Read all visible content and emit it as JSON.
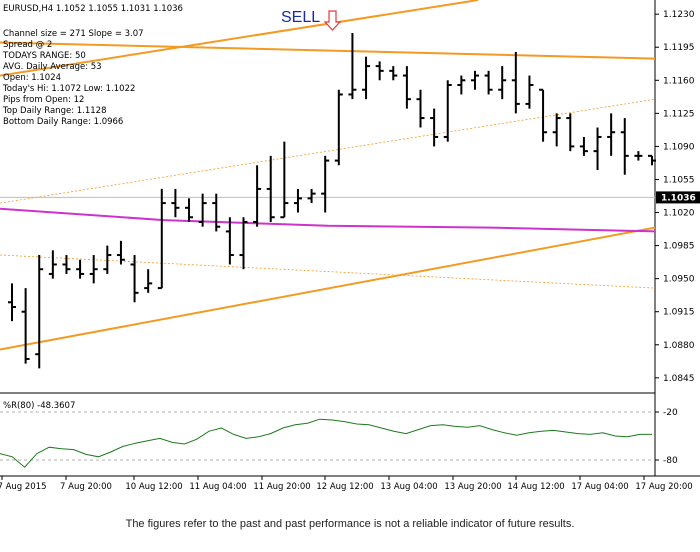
{
  "header": {
    "symbol_line": "EURUSD,H4  1.1052 1.1055 1.1031 1.1036"
  },
  "info_lines": [
    "Channel size = 271 Slope = 3.07",
    "Spread @ 2",
    "TODAYS RANGE: 50",
    "AVG. Daily Average: 53",
    "Open: 1.1024",
    "Today's Hi: 1.1072  Low: 1.1022",
    "Pips from Open: 12",
    "Top Daily Range: 1.1128",
    "Bottom Daily Range: 1.0966"
  ],
  "signal": {
    "label": "SELL",
    "color": "#1a2aa8",
    "arrow_color": "#e23b3b",
    "icon": "down-arrow-icon"
  },
  "disclaimer": "The figures refer to the past and past performance is not a reliable indicator of future results.",
  "colors": {
    "bars": "#000000",
    "channel": "#f39a21",
    "ma": "#cc33cc",
    "indicator": "#1e7a1e",
    "price_tag_bg": "#000000",
    "price_tag_fg": "#ffffff"
  },
  "chart_data": [
    {
      "type": "ohlc",
      "symbol": "EURUSD",
      "timeframe": "H4",
      "ylim": [
        1.083,
        1.1245
      ],
      "yticks": [
        "1.1230",
        "1.1195",
        "1.1160",
        "1.1125",
        "1.1090",
        "1.1055",
        "1.1020",
        "1.0985",
        "1.0950",
        "1.0915",
        "1.0880",
        "1.0845"
      ],
      "ytick_values": [
        1.123,
        1.1195,
        1.116,
        1.1125,
        1.109,
        1.1055,
        1.102,
        1.0985,
        1.095,
        1.0915,
        1.088,
        1.0845
      ],
      "current_price": "1.1036",
      "current_price_value": 1.1036,
      "xticks": [
        "7 Aug 2015",
        "7 Aug 20:00",
        "10 Aug 12:00",
        "11 Aug 04:00",
        "11 Aug 20:00",
        "12 Aug 12:00",
        "13 Aug 04:00",
        "13 Aug 20:00",
        "14 Aug 12:00",
        "17 Aug 04:00",
        "17 Aug 20:00"
      ],
      "bars": [
        [
          1.0925,
          1.0945,
          1.0905,
          1.092
        ],
        [
          1.0915,
          1.094,
          1.086,
          1.0865
        ],
        [
          1.087,
          1.0975,
          1.0855,
          1.096
        ],
        [
          1.0955,
          1.098,
          1.095,
          1.0965
        ],
        [
          1.0965,
          1.0975,
          1.0955,
          1.096
        ],
        [
          1.096,
          1.097,
          1.095,
          1.0955
        ],
        [
          1.0955,
          1.0975,
          1.0945,
          1.096
        ],
        [
          1.096,
          1.0985,
          1.0955,
          1.0975
        ],
        [
          1.0975,
          1.099,
          1.0965,
          1.097
        ],
        [
          1.0965,
          1.0975,
          1.0925,
          1.0935
        ],
        [
          1.094,
          1.096,
          1.0935,
          1.0945
        ],
        [
          1.094,
          1.1045,
          1.094,
          1.103
        ],
        [
          1.103,
          1.1045,
          1.1015,
          1.1025
        ],
        [
          1.1025,
          1.1035,
          1.101,
          1.1015
        ],
        [
          1.101,
          1.104,
          1.1005,
          1.103
        ],
        [
          1.103,
          1.104,
          1.1,
          1.1005
        ],
        [
          1.1,
          1.1015,
          1.0965,
          1.0975
        ],
        [
          1.0975,
          1.1015,
          1.096,
          1.101
        ],
        [
          1.101,
          1.107,
          1.1005,
          1.1045
        ],
        [
          1.1045,
          1.108,
          1.101,
          1.1015
        ],
        [
          1.1015,
          1.1095,
          1.1015,
          1.103
        ],
        [
          1.103,
          1.1045,
          1.102,
          1.1035
        ],
        [
          1.1035,
          1.1045,
          1.103,
          1.104
        ],
        [
          1.104,
          1.108,
          1.102,
          1.1075
        ],
        [
          1.1075,
          1.115,
          1.107,
          1.1145
        ],
        [
          1.1145,
          1.121,
          1.114,
          1.115
        ],
        [
          1.115,
          1.1185,
          1.114,
          1.1175
        ],
        [
          1.1175,
          1.118,
          1.116,
          1.117
        ],
        [
          1.117,
          1.1175,
          1.116,
          1.1165
        ],
        [
          1.1165,
          1.1175,
          1.113,
          1.114
        ],
        [
          1.114,
          1.115,
          1.111,
          1.112
        ],
        [
          1.112,
          1.113,
          1.109,
          1.11
        ],
        [
          1.11,
          1.116,
          1.1095,
          1.1155
        ],
        [
          1.1155,
          1.1165,
          1.1145,
          1.116
        ],
        [
          1.116,
          1.117,
          1.115,
          1.1165
        ],
        [
          1.1165,
          1.117,
          1.1145,
          1.115
        ],
        [
          1.115,
          1.1175,
          1.114,
          1.116
        ],
        [
          1.116,
          1.119,
          1.1125,
          1.1135
        ],
        [
          1.1135,
          1.1165,
          1.113,
          1.1155
        ],
        [
          1.115,
          1.115,
          1.1095,
          1.1105
        ],
        [
          1.1105,
          1.1125,
          1.109,
          1.112
        ],
        [
          1.112,
          1.1125,
          1.1085,
          1.109
        ],
        [
          1.109,
          1.11,
          1.108,
          1.1085
        ],
        [
          1.1085,
          1.111,
          1.1065,
          1.11
        ],
        [
          1.11,
          1.1125,
          1.108,
          1.1105
        ],
        [
          1.1105,
          1.112,
          1.106,
          1.108
        ],
        [
          1.108,
          1.1085,
          1.1075,
          1.108
        ],
        [
          1.108,
          1.108,
          1.107,
          1.1075
        ]
      ],
      "series": [
        {
          "type": "line",
          "style": "solid",
          "color": "#f39a21",
          "points": [
            [
              0,
              1.12
            ],
            [
              1,
              1.1183
            ]
          ]
        },
        {
          "type": "line",
          "style": "solid",
          "color": "#f39a21",
          "points": [
            [
              0,
              1.1165
            ],
            [
              0.73,
              1.1245
            ]
          ]
        },
        {
          "type": "line",
          "style": "solid",
          "color": "#f39a21",
          "points": [
            [
              0,
              1.0875
            ],
            [
              1,
              1.1004
            ]
          ]
        },
        {
          "type": "line",
          "style": "dashed",
          "color": "#f39a21",
          "points": [
            [
              0,
              1.103
            ],
            [
              1,
              1.114
            ]
          ]
        },
        {
          "type": "line",
          "style": "dashed",
          "color": "#f39a21",
          "points": [
            [
              0,
              1.0975
            ],
            [
              1,
              1.094
            ]
          ]
        },
        {
          "type": "line",
          "style": "solid",
          "color": "#cc33cc",
          "points": [
            [
              0,
              1.1024
            ],
            [
              0.25,
              1.1012
            ],
            [
              0.5,
              1.1006
            ],
            [
              0.75,
              1.1004
            ],
            [
              1,
              1.1
            ]
          ]
        }
      ]
    },
    {
      "type": "line",
      "title": "%R(80) -48.3607",
      "ylim": [
        -100,
        0
      ],
      "yticks": [
        "-20",
        "-80"
      ],
      "ytick_values": [
        -20,
        -80
      ],
      "series": [
        {
          "values": [
            -72,
            -76,
            -89,
            -72,
            -64,
            -66,
            -67,
            -73,
            -76,
            -70,
            -63,
            -59,
            -56,
            -53,
            -58,
            -60,
            -54,
            -44,
            -40,
            -48,
            -53,
            -51,
            -47,
            -40,
            -36,
            -34,
            -29,
            -30,
            -32,
            -35,
            -36,
            -40,
            -44,
            -47,
            -42,
            -37,
            -36,
            -38,
            -39,
            -37,
            -42,
            -46,
            -49,
            -46,
            -44,
            -43,
            -45,
            -47,
            -48,
            -46,
            -50,
            -51,
            -48,
            -48
          ]
        }
      ]
    }
  ]
}
